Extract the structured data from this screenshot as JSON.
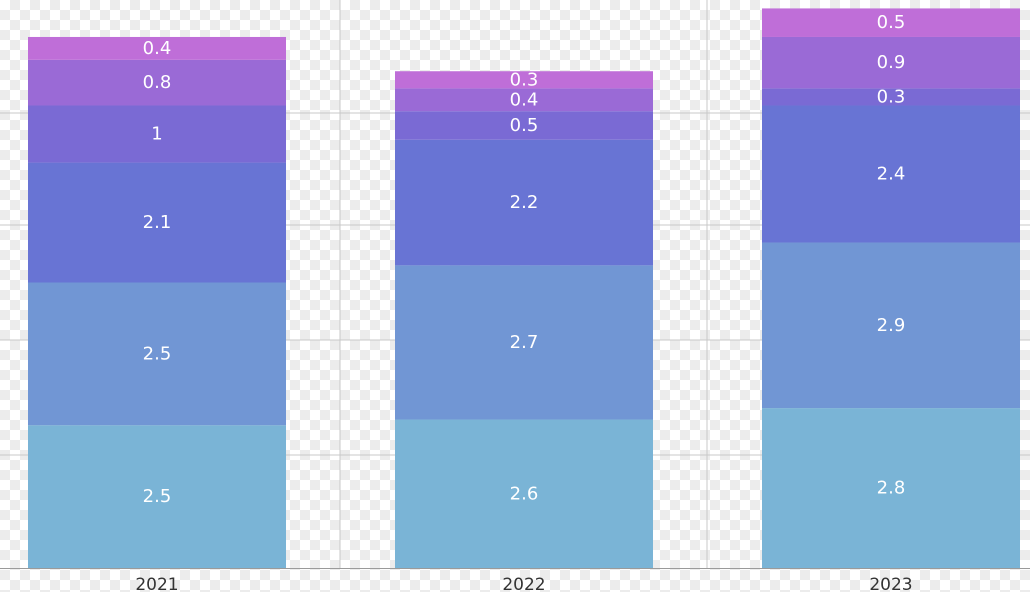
{
  "chart_data": {
    "type": "bar",
    "stacked": true,
    "categories": [
      "2021",
      "2022",
      "2023"
    ],
    "series": [
      {
        "values": [
          2.5,
          2.6,
          2.8
        ],
        "color": "#7ab4d6"
      },
      {
        "values": [
          2.5,
          2.7,
          2.9
        ],
        "color": "#7196d4"
      },
      {
        "values": [
          2.1,
          2.2,
          2.4
        ],
        "color": "#6874d4"
      },
      {
        "values": [
          1,
          0.5,
          0.3
        ],
        "color": "#7a6ad4"
      },
      {
        "values": [
          0.8,
          0.4,
          0.9
        ],
        "color": "#9a6ad6"
      },
      {
        "values": [
          0.4,
          0.3,
          0.5
        ],
        "color": "#bf6ed8"
      }
    ],
    "ylim": [
      0,
      9.5
    ],
    "grid": true,
    "legend": "none",
    "title": "",
    "xlabel": "",
    "ylabel": ""
  }
}
